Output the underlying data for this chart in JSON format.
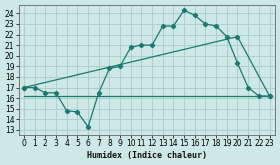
{
  "xlabel": "Humidex (Indice chaleur)",
  "background_color": "#cde8e5",
  "grid_color": "#aecfcc",
  "line_color": "#1a7a6e",
  "xlim": [
    -0.5,
    23.5
  ],
  "ylim": [
    12.5,
    24.8
  ],
  "yticks": [
    13,
    14,
    15,
    16,
    17,
    18,
    19,
    20,
    21,
    22,
    23,
    24
  ],
  "xticks": [
    0,
    1,
    2,
    3,
    4,
    5,
    6,
    7,
    8,
    9,
    10,
    11,
    12,
    13,
    14,
    15,
    16,
    17,
    18,
    19,
    20,
    21,
    22,
    23
  ],
  "line1_x": [
    0,
    1,
    2,
    3,
    4,
    5,
    6,
    7,
    8,
    9,
    10,
    11,
    12,
    13,
    14,
    15,
    16,
    17,
    18,
    19,
    20,
    21,
    22,
    23
  ],
  "line1_y": [
    17.0,
    17.0,
    16.5,
    16.5,
    14.8,
    14.7,
    13.3,
    16.5,
    18.8,
    19.0,
    20.8,
    21.0,
    21.0,
    22.8,
    22.8,
    24.3,
    23.8,
    23.0,
    22.8,
    21.8,
    19.3,
    17.0,
    16.2,
    16.2
  ],
  "line2_x": [
    0,
    20,
    23
  ],
  "line2_y": [
    17.0,
    21.8,
    16.2
  ],
  "line3_x": [
    0,
    23
  ],
  "line3_y": [
    16.2,
    16.2
  ],
  "marker": "D",
  "markersize": 2.2,
  "linewidth": 0.9,
  "tick_labelsize": 5.5,
  "xlabel_fontsize": 6.0
}
